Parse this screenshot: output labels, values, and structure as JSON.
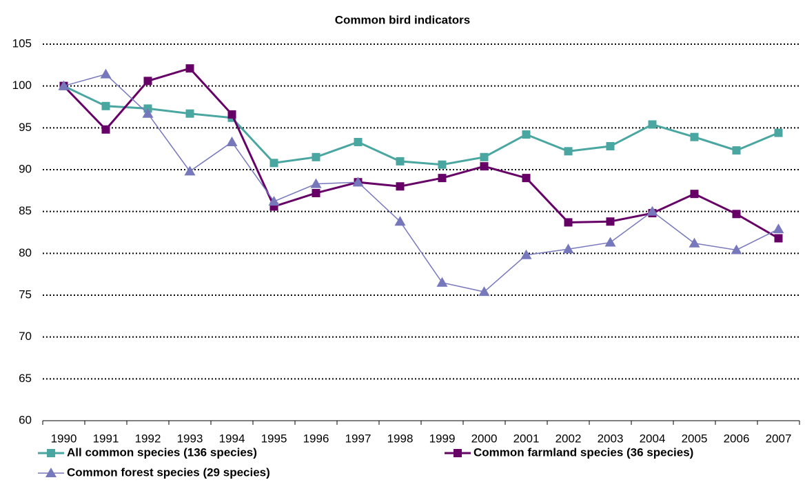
{
  "chart_data": {
    "type": "line",
    "title": "Common bird indicators",
    "categories": [
      "1990",
      "1991",
      "1992",
      "1993",
      "1994",
      "1995",
      "1996",
      "1997",
      "1998",
      "1999",
      "2000",
      "2001",
      "2002",
      "2003",
      "2004",
      "2005",
      "2006",
      "2007"
    ],
    "series": [
      {
        "name": "All common species (136 species)",
        "color": "#4aa6a0",
        "marker": "square",
        "values": [
          100,
          97.6,
          97.3,
          96.7,
          96.2,
          90.8,
          91.5,
          93.3,
          91.0,
          90.6,
          91.5,
          94.2,
          92.2,
          92.8,
          95.4,
          93.9,
          92.3,
          94.4
        ]
      },
      {
        "name": "Common farmland species (36 species)",
        "color": "#660066",
        "marker": "square",
        "values": [
          100,
          94.8,
          100.6,
          102.1,
          96.6,
          85.6,
          87.2,
          88.5,
          88.0,
          89.0,
          90.4,
          89.0,
          83.7,
          83.8,
          84.8,
          87.1,
          84.7,
          81.8
        ]
      },
      {
        "name": "Common forest species (29 species)",
        "color": "#7777bb",
        "marker": "triangle",
        "values": [
          100,
          101.4,
          96.7,
          89.8,
          93.3,
          86.2,
          88.3,
          88.5,
          83.8,
          76.5,
          75.4,
          79.8,
          80.5,
          81.3,
          85.0,
          81.2,
          80.4,
          82.9
        ]
      }
    ],
    "ylim": [
      60,
      105
    ],
    "yticks": [
      60,
      65,
      70,
      75,
      80,
      85,
      90,
      95,
      100,
      105
    ],
    "grid": true
  }
}
